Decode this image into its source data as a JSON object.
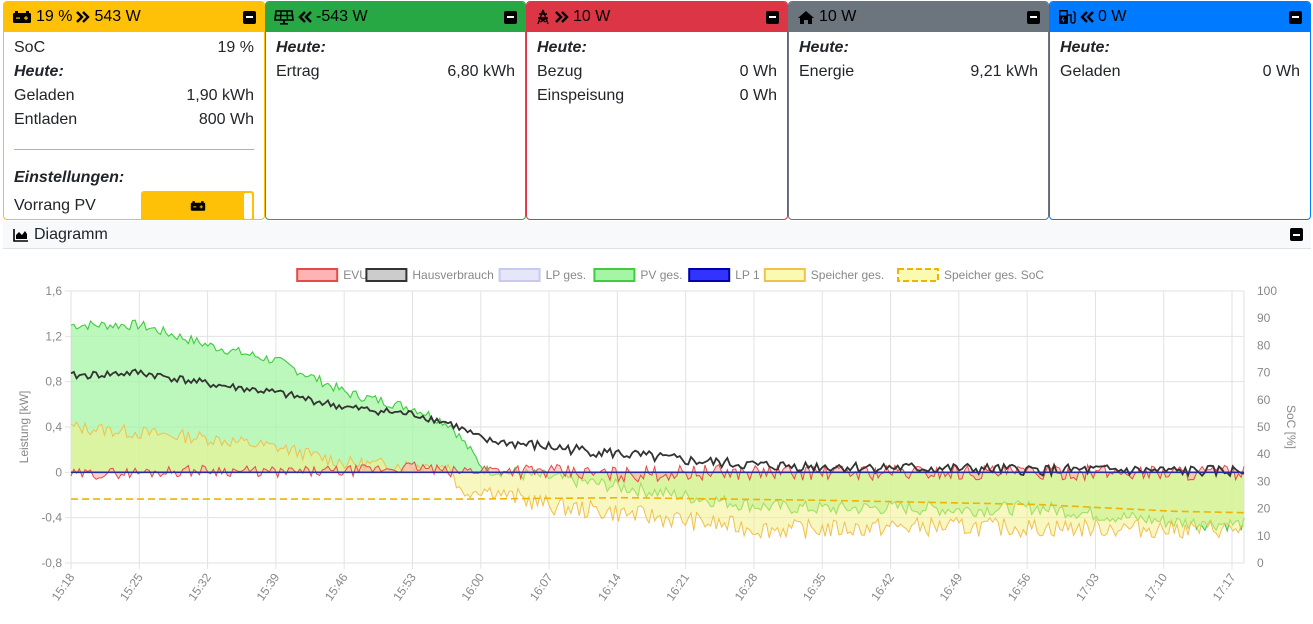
{
  "battery": {
    "header": "19 % ",
    "power": "543 W",
    "soc_label": "SoC",
    "soc_value": "19 %",
    "today_label": "Heute:",
    "charged_label": "Geladen",
    "charged_value": "1,90 kWh",
    "discharged_label": "Entladen",
    "discharged_value": "800 Wh",
    "settings_label": "Einstellungen:",
    "priority_label": "Vorrang PV",
    "color": "#ffc107"
  },
  "pv": {
    "power": "-543 W",
    "today_label": "Heute:",
    "yield_label": "Ertrag",
    "yield_value": "6,80 kWh",
    "color": "#28a745"
  },
  "grid": {
    "power": "10 W",
    "today_label": "Heute:",
    "import_label": "Bezug",
    "import_value": "0 Wh",
    "export_label": "Einspeisung",
    "export_value": "0 Wh",
    "color": "#dc3545"
  },
  "home": {
    "power": "10 W",
    "today_label": "Heute:",
    "energy_label": "Energie",
    "energy_value": "9,21 kWh",
    "color": "#6c757d"
  },
  "charging": {
    "power": "0 W",
    "today_label": "Heute:",
    "charged_label": "Geladen",
    "charged_value": "0 Wh",
    "color": "#007bff"
  },
  "diagram": {
    "title": "Diagramm"
  },
  "chart_data": {
    "type": "area",
    "ylabel": "Leistung [kW]",
    "y2label": "SoC [%]",
    "ylim": [
      -0.8,
      1.6
    ],
    "y2lim": [
      0,
      100
    ],
    "yticks": [
      "1,6",
      "1,2",
      "0,8",
      "0,4",
      "0",
      "-0,4",
      "-0,8"
    ],
    "y2ticks": [
      "100",
      "90",
      "80",
      "70",
      "60",
      "50",
      "40",
      "30",
      "20",
      "10",
      "0"
    ],
    "xticks": [
      "15:18",
      "15:25",
      "15:32",
      "15:39",
      "15:46",
      "15:53",
      "16:00",
      "16:07",
      "16:14",
      "16:21",
      "16:28",
      "16:35",
      "16:42",
      "16:49",
      "16:56",
      "17:03",
      "17:10",
      "17:17"
    ],
    "legend_position": "top",
    "grid": true,
    "legend": [
      {
        "name": "EVU",
        "fill": "#ffb3b3",
        "stroke": "#e34b4b",
        "dashed": false
      },
      {
        "name": "Hausverbrauch",
        "fill": "#cccccc",
        "stroke": "#333333",
        "dashed": false
      },
      {
        "name": "LP ges.",
        "fill": "#e6e6fa",
        "stroke": "#c8c8f0",
        "dashed": false
      },
      {
        "name": "PV ges.",
        "fill": "#a6f5a6",
        "stroke": "#3fcc3f",
        "dashed": false
      },
      {
        "name": "LP 1",
        "fill": "#3333ff",
        "stroke": "#0000aa",
        "dashed": false
      },
      {
        "name": "Speicher ges.",
        "fill": "#fafab0",
        "stroke": "#f0c050",
        "dashed": false
      },
      {
        "name": "Speicher ges. SoC",
        "fill": "#fafab0",
        "stroke": "#f0b400",
        "dashed": true
      }
    ],
    "series": [
      {
        "name": "PV ges.",
        "x_min": [
          0,
          7,
          14,
          21,
          28,
          35,
          38.5,
          42,
          49,
          56,
          63,
          70,
          77,
          84,
          91,
          98,
          105,
          112,
          119
        ],
        "values": [
          1.3,
          1.3,
          1.12,
          0.98,
          0.7,
          0.56,
          0.42,
          0.02,
          -0.05,
          -0.13,
          -0.22,
          -0.3,
          -0.32,
          -0.31,
          -0.33,
          -0.31,
          -0.38,
          -0.44,
          -0.46
        ]
      },
      {
        "name": "Hausverbrauch",
        "x_min": [
          0,
          7,
          14,
          21,
          28,
          35,
          38.5,
          42,
          49,
          56,
          63,
          70,
          77,
          84,
          91,
          98,
          105,
          112,
          119
        ],
        "values": [
          0.85,
          0.88,
          0.78,
          0.7,
          0.57,
          0.51,
          0.43,
          0.28,
          0.22,
          0.16,
          0.1,
          0.06,
          0.05,
          0.04,
          0.03,
          0.02,
          0.02,
          0.01,
          0.01
        ]
      },
      {
        "name": "Speicher ges.",
        "x_min": [
          0,
          7,
          14,
          21,
          28,
          35,
          38.5,
          39.5,
          42,
          49,
          56,
          63,
          70,
          77,
          84,
          91,
          98,
          105,
          112,
          119
        ],
        "values": [
          0.4,
          0.35,
          0.3,
          0.22,
          0.08,
          0.06,
          0.05,
          -0.18,
          -0.15,
          -0.3,
          -0.36,
          -0.43,
          -0.5,
          -0.5,
          -0.48,
          -0.48,
          -0.49,
          -0.49,
          -0.5,
          -0.5
        ]
      },
      {
        "name": "EVU",
        "x_min": [
          0,
          7,
          14,
          21,
          28,
          35,
          38.5,
          42,
          49,
          56,
          63,
          70,
          77,
          84,
          91,
          98,
          105,
          112,
          119
        ],
        "values": [
          -0.02,
          0.0,
          0.02,
          0.0,
          0.01,
          0.05,
          0.0,
          0.03,
          0.0,
          -0.02,
          0.0,
          0.0,
          0.0,
          0.0,
          0.0,
          0.0,
          0.0,
          0.0,
          0.0
        ]
      },
      {
        "name": "LP 1",
        "x_min": [
          0,
          119
        ],
        "values": [
          0,
          0
        ]
      },
      {
        "name": "Speicher ges. SoC",
        "x_min": [
          0,
          40,
          56,
          77,
          98,
          112,
          119
        ],
        "values": [
          23.5,
          23.5,
          24.0,
          23.0,
          21.5,
          19.0,
          18.5
        ]
      }
    ]
  }
}
